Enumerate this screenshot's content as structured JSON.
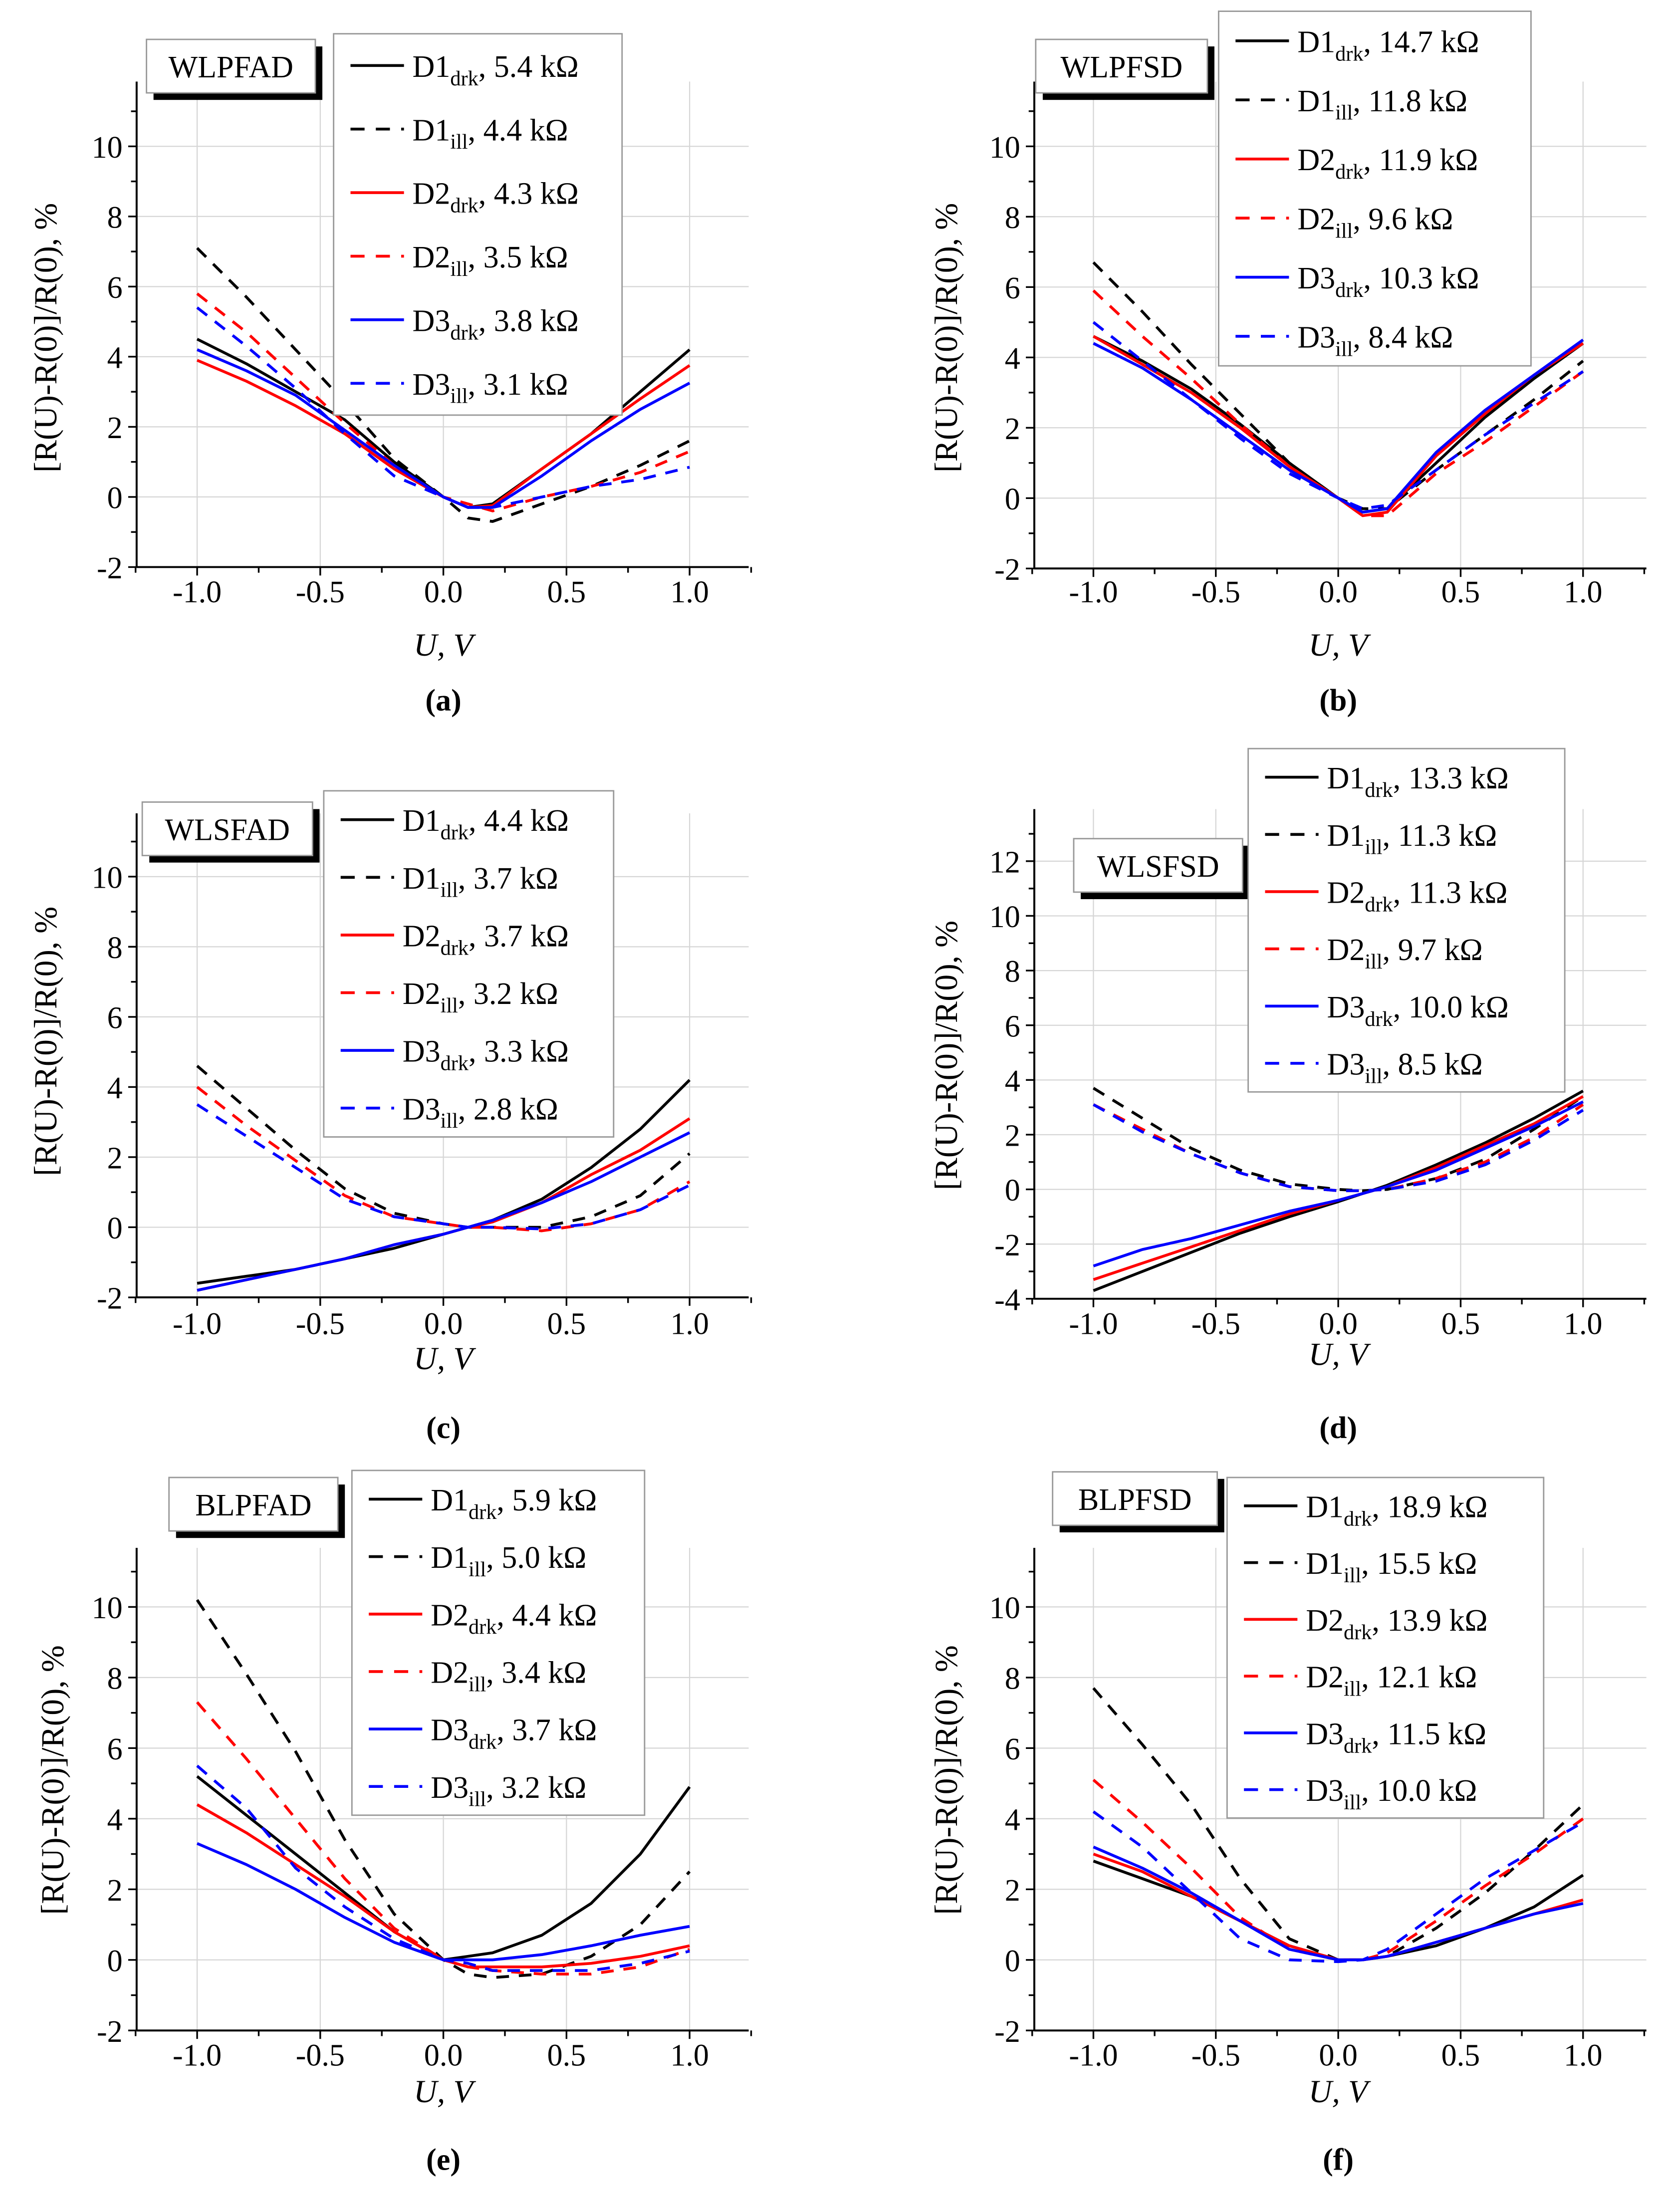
{
  "colors": {
    "D1": "#000000",
    "D2": "#ff0000",
    "D3": "#0000ff"
  },
  "chart_data": [
    {
      "type": "line",
      "panel_label": "(a)",
      "title": "WLPFAD",
      "xlabel": "U, V",
      "ylabel": "[R(U)-R(0)]/R(0), %",
      "xlim": [
        -1.25,
        1.25
      ],
      "ylim": [
        -2,
        12
      ],
      "xticks": [
        "-1.0",
        "-0.5",
        "0.0",
        "0.5",
        "1.0"
      ],
      "yticks": [
        "-2",
        "0",
        "2",
        "4",
        "6",
        "8",
        "10"
      ],
      "x": [
        -1,
        -0.8,
        -0.6,
        -0.4,
        -0.2,
        0,
        0.1,
        0.2,
        0.4,
        0.6,
        0.8,
        1
      ],
      "series": [
        {
          "name": "D1",
          "sub": "drk",
          "value": "5.4 kΩ",
          "dashed": false,
          "values": [
            4.5,
            3.8,
            3.0,
            2.2,
            1.0,
            0,
            -0.3,
            -0.2,
            0.8,
            1.8,
            3.0,
            4.2
          ]
        },
        {
          "name": "D1",
          "sub": "ill",
          "value": "4.4 kΩ",
          "dashed": true,
          "values": [
            7.1,
            5.7,
            4.2,
            2.7,
            1.1,
            0,
            -0.6,
            -0.7,
            -0.2,
            0.3,
            0.9,
            1.6
          ]
        },
        {
          "name": "D2",
          "sub": "drk",
          "value": "4.3 kΩ",
          "dashed": false,
          "values": [
            3.9,
            3.3,
            2.6,
            1.8,
            0.8,
            0,
            -0.3,
            -0.25,
            0.8,
            1.8,
            2.8,
            3.75
          ]
        },
        {
          "name": "D2",
          "sub": "ill",
          "value": "3.5 kΩ",
          "dashed": true,
          "values": [
            5.8,
            4.7,
            3.4,
            2.1,
            0.9,
            0,
            -0.2,
            -0.4,
            0,
            0.3,
            0.7,
            1.3
          ]
        },
        {
          "name": "D3",
          "sub": "drk",
          "value": "3.8 kΩ",
          "dashed": false,
          "values": [
            4.2,
            3.6,
            2.9,
            1.9,
            0.9,
            0,
            -0.3,
            -0.3,
            0.6,
            1.6,
            2.5,
            3.25
          ]
        },
        {
          "name": "D3",
          "sub": "ill",
          "value": "3.1 kΩ",
          "dashed": true,
          "values": [
            5.4,
            4.3,
            3.1,
            1.8,
            0.6,
            0,
            -0.3,
            -0.3,
            0,
            0.3,
            0.5,
            0.85
          ]
        }
      ]
    },
    {
      "type": "line",
      "panel_label": "(b)",
      "title": "WLPFSD",
      "xlabel": "U, V",
      "ylabel": "[R(U)-R(0)]/R(0), %",
      "xlim": [
        -1.25,
        1.25
      ],
      "ylim": [
        -2,
        12
      ],
      "xticks": [
        "-1.0",
        "-0.5",
        "0.0",
        "0.5",
        "1.0"
      ],
      "yticks": [
        "-2",
        "0",
        "2",
        "4",
        "6",
        "8",
        "10"
      ],
      "x": [
        -1,
        -0.8,
        -0.6,
        -0.4,
        -0.2,
        0,
        0.1,
        0.2,
        0.4,
        0.6,
        0.8,
        1
      ],
      "series": [
        {
          "name": "D1",
          "sub": "drk",
          "value": "14.7 kΩ",
          "dashed": false,
          "values": [
            4.6,
            3.9,
            3.1,
            2.1,
            1.0,
            0,
            -0.4,
            -0.3,
            1.0,
            2.3,
            3.4,
            4.4
          ]
        },
        {
          "name": "D1",
          "sub": "ill",
          "value": "11.8 kΩ",
          "dashed": true,
          "values": [
            6.7,
            5.3,
            3.8,
            2.4,
            1.0,
            0,
            -0.3,
            -0.3,
            0.8,
            1.8,
            2.8,
            3.9
          ]
        },
        {
          "name": "D2",
          "sub": "drk",
          "value": "11.9 kΩ",
          "dashed": false,
          "values": [
            4.6,
            3.8,
            3.0,
            2.0,
            0.9,
            0,
            -0.5,
            -0.4,
            1.2,
            2.4,
            3.5,
            4.4
          ]
        },
        {
          "name": "D2",
          "sub": "ill",
          "value": "9.6 kΩ",
          "dashed": true,
          "values": [
            5.9,
            4.6,
            3.4,
            2.1,
            0.9,
            0,
            -0.5,
            -0.5,
            0.7,
            1.6,
            2.6,
            3.6
          ]
        },
        {
          "name": "D3",
          "sub": "drk",
          "value": "10.3 kΩ",
          "dashed": false,
          "values": [
            4.4,
            3.7,
            2.8,
            1.8,
            0.8,
            0,
            -0.4,
            -0.3,
            1.3,
            2.5,
            3.5,
            4.5
          ]
        },
        {
          "name": "D3",
          "sub": "ill",
          "value": "8.4 kΩ",
          "dashed": true,
          "values": [
            5.0,
            3.9,
            2.8,
            1.7,
            0.7,
            0,
            -0.3,
            -0.2,
            0.8,
            1.8,
            2.7,
            3.6
          ]
        }
      ]
    },
    {
      "type": "line",
      "panel_label": "(c)",
      "title": "WLSFAD",
      "xlabel": "U, V",
      "ylabel": "[R(U)-R(0)]/R(0), %",
      "xlim": [
        -1.25,
        1.25
      ],
      "ylim": [
        -2,
        12
      ],
      "xticks": [
        "-1.0",
        "-0.5",
        "0.0",
        "0.5",
        "1.0"
      ],
      "yticks": [
        "-2",
        "0",
        "2",
        "4",
        "6",
        "8",
        "10"
      ],
      "x": [
        -1,
        -0.8,
        -0.6,
        -0.4,
        -0.2,
        0,
        0.1,
        0.2,
        0.4,
        0.6,
        0.8,
        1
      ],
      "series": [
        {
          "name": "D1",
          "sub": "drk",
          "value": "4.4 kΩ",
          "dashed": false,
          "values": [
            -1.6,
            -1.4,
            -1.2,
            -0.9,
            -0.6,
            -0.2,
            0.0,
            0.2,
            0.8,
            1.7,
            2.8,
            4.2
          ]
        },
        {
          "name": "D1",
          "sub": "ill",
          "value": "3.7 kΩ",
          "dashed": true,
          "values": [
            4.6,
            3.4,
            2.2,
            1.1,
            0.4,
            0.1,
            0.0,
            0.0,
            0.0,
            0.3,
            0.9,
            2.1
          ]
        },
        {
          "name": "D2",
          "sub": "drk",
          "value": "3.7 kΩ",
          "dashed": false,
          "values": [
            -1.8,
            -1.5,
            -1.2,
            -0.9,
            -0.5,
            -0.2,
            0.0,
            0.15,
            0.7,
            1.5,
            2.2,
            3.1
          ]
        },
        {
          "name": "D2",
          "sub": "ill",
          "value": "3.2 kΩ",
          "dashed": true,
          "values": [
            4.0,
            2.9,
            1.9,
            0.9,
            0.3,
            0.1,
            0.0,
            0.0,
            -0.1,
            0.1,
            0.5,
            1.3
          ]
        },
        {
          "name": "D3",
          "sub": "drk",
          "value": "3.3 kΩ",
          "dashed": false,
          "values": [
            -1.8,
            -1.5,
            -1.2,
            -0.9,
            -0.5,
            -0.2,
            0.0,
            0.2,
            0.7,
            1.3,
            2.0,
            2.7
          ]
        },
        {
          "name": "D3",
          "sub": "ill",
          "value": "2.8 kΩ",
          "dashed": true,
          "values": [
            3.5,
            2.6,
            1.7,
            0.8,
            0.3,
            0.1,
            0.0,
            0.0,
            -0.05,
            0.1,
            0.5,
            1.2
          ]
        }
      ]
    },
    {
      "type": "line",
      "panel_label": "(d)",
      "title": "WLSFSD",
      "xlabel": "U, V",
      "ylabel": "[R(U)-R(0)]/R(0), %",
      "xlim": [
        -1.25,
        1.25
      ],
      "ylim": [
        -4,
        14
      ],
      "xticks": [
        "-1.0",
        "-0.5",
        "0.0",
        "0.5",
        "1.0"
      ],
      "yticks": [
        "-4",
        "-2",
        "0",
        "2",
        "4",
        "6",
        "8",
        "10",
        "12"
      ],
      "x": [
        -1,
        -0.8,
        -0.6,
        -0.4,
        -0.2,
        0,
        0.1,
        0.2,
        0.4,
        0.6,
        0.8,
        1
      ],
      "series": [
        {
          "name": "D1",
          "sub": "drk",
          "value": "13.3 kΩ",
          "dashed": false,
          "values": [
            -3.7,
            -3.0,
            -2.3,
            -1.6,
            -1.0,
            -0.45,
            -0.15,
            0.15,
            0.9,
            1.7,
            2.6,
            3.6
          ]
        },
        {
          "name": "D1",
          "sub": "ill",
          "value": "11.3 kΩ",
          "dashed": true,
          "values": [
            3.7,
            2.6,
            1.5,
            0.7,
            0.2,
            0,
            -0.05,
            0,
            0.4,
            1.1,
            2.2,
            3.4
          ]
        },
        {
          "name": "D2",
          "sub": "drk",
          "value": "11.3 kΩ",
          "dashed": false,
          "values": [
            -3.3,
            -2.7,
            -2.1,
            -1.5,
            -0.9,
            -0.4,
            -0.15,
            0.1,
            0.8,
            1.6,
            2.4,
            3.4
          ]
        },
        {
          "name": "D2",
          "sub": "ill",
          "value": "9.7 kΩ",
          "dashed": true,
          "values": [
            3.1,
            2.2,
            1.3,
            0.6,
            0.1,
            -0.05,
            -0.05,
            0,
            0.4,
            1.0,
            1.9,
            3.1
          ]
        },
        {
          "name": "D3",
          "sub": "drk",
          "value": "10.0 kΩ",
          "dashed": false,
          "values": [
            -2.8,
            -2.2,
            -1.8,
            -1.3,
            -0.8,
            -0.4,
            -0.15,
            0.1,
            0.7,
            1.5,
            2.3,
            3.2
          ]
        },
        {
          "name": "D3",
          "sub": "ill",
          "value": "8.5 kΩ",
          "dashed": true,
          "values": [
            3.1,
            2.1,
            1.3,
            0.6,
            0.1,
            -0.05,
            -0.05,
            0,
            0.3,
            0.9,
            1.8,
            2.9
          ]
        }
      ]
    },
    {
      "type": "line",
      "panel_label": "(e)",
      "title": "BLPFAD",
      "xlabel": "U, V",
      "ylabel": "[R(U)-R(0)]/R(0), %",
      "xlim": [
        -1.25,
        1.25
      ],
      "ylim": [
        -2,
        12
      ],
      "xticks": [
        "-1.0",
        "-0.5",
        "0.0",
        "0.5",
        "1.0"
      ],
      "yticks": [
        "-2",
        "0",
        "2",
        "4",
        "6",
        "8",
        "10"
      ],
      "x": [
        -1,
        -0.8,
        -0.6,
        -0.4,
        -0.2,
        0,
        0.1,
        0.2,
        0.4,
        0.6,
        0.8,
        1
      ],
      "series": [
        {
          "name": "D1",
          "sub": "drk",
          "value": "5.9 kΩ",
          "dashed": false,
          "values": [
            5.2,
            4.1,
            3.0,
            1.9,
            0.8,
            0,
            0.1,
            0.2,
            0.7,
            1.6,
            3.0,
            4.9
          ]
        },
        {
          "name": "D1",
          "sub": "ill",
          "value": "5.0 kΩ",
          "dashed": true,
          "values": [
            10.2,
            8.1,
            5.9,
            3.4,
            1.3,
            0,
            -0.4,
            -0.5,
            -0.4,
            0.1,
            1.0,
            2.5
          ]
        },
        {
          "name": "D2",
          "sub": "drk",
          "value": "4.4 kΩ",
          "dashed": false,
          "values": [
            4.4,
            3.6,
            2.7,
            1.8,
            0.8,
            0,
            -0.2,
            -0.2,
            -0.2,
            -0.1,
            0.1,
            0.4
          ]
        },
        {
          "name": "D2",
          "sub": "ill",
          "value": "3.4 kΩ",
          "dashed": true,
          "values": [
            7.3,
            5.7,
            4.0,
            2.3,
            0.9,
            0,
            -0.2,
            -0.3,
            -0.4,
            -0.4,
            -0.2,
            0.3
          ]
        },
        {
          "name": "D3",
          "sub": "drk",
          "value": "3.7 kΩ",
          "dashed": false,
          "values": [
            3.3,
            2.7,
            2.0,
            1.2,
            0.5,
            0,
            0,
            0,
            0.15,
            0.4,
            0.7,
            0.95
          ]
        },
        {
          "name": "D3",
          "sub": "ill",
          "value": "3.2 kΩ",
          "dashed": true,
          "values": [
            5.5,
            4.3,
            2.6,
            1.5,
            0.6,
            0,
            -0.1,
            -0.3,
            -0.3,
            -0.3,
            -0.1,
            0.25
          ]
        }
      ]
    },
    {
      "type": "line",
      "panel_label": "(f)",
      "title": "BLPFSD",
      "xlabel": "U, V",
      "ylabel": "[R(U)-R(0)]/R(0), %",
      "xlim": [
        -1.25,
        1.25
      ],
      "ylim": [
        -2,
        12
      ],
      "xticks": [
        "-1.0",
        "-0.5",
        "0.0",
        "0.5",
        "1.0"
      ],
      "yticks": [
        "-2",
        "0",
        "2",
        "4",
        "6",
        "8",
        "10"
      ],
      "x": [
        -1,
        -0.8,
        -0.6,
        -0.4,
        -0.2,
        0,
        0.1,
        0.2,
        0.4,
        0.6,
        0.8,
        1
      ],
      "series": [
        {
          "name": "D1",
          "sub": "drk",
          "value": "18.9 kΩ",
          "dashed": false,
          "values": [
            2.8,
            2.3,
            1.8,
            1.1,
            0.4,
            0,
            0,
            0.1,
            0.4,
            0.9,
            1.5,
            2.4
          ]
        },
        {
          "name": "D1",
          "sub": "ill",
          "value": "15.5 kΩ",
          "dashed": true,
          "values": [
            7.7,
            6.1,
            4.4,
            2.3,
            0.6,
            0,
            0,
            0.1,
            0.9,
            1.9,
            3.1,
            4.4
          ]
        },
        {
          "name": "D2",
          "sub": "drk",
          "value": "13.9 kΩ",
          "dashed": false,
          "values": [
            3.0,
            2.5,
            1.8,
            1.1,
            0.4,
            0,
            0,
            0.1,
            0.5,
            0.9,
            1.3,
            1.7
          ]
        },
        {
          "name": "D2",
          "sub": "ill",
          "value": "12.1 kΩ",
          "dashed": true,
          "values": [
            5.1,
            3.9,
            2.6,
            1.2,
            0.3,
            0,
            0,
            0.2,
            1.1,
            2.1,
            3.0,
            4.0
          ]
        },
        {
          "name": "D3",
          "sub": "drk",
          "value": "11.5 kΩ",
          "dashed": false,
          "values": [
            3.2,
            2.6,
            1.9,
            1.1,
            0.3,
            0,
            0,
            0.1,
            0.5,
            0.9,
            1.3,
            1.6
          ]
        },
        {
          "name": "D3",
          "sub": "ill",
          "value": "10.0 kΩ",
          "dashed": true,
          "values": [
            4.2,
            3.2,
            1.9,
            0.6,
            0.0,
            -0.05,
            0,
            0.3,
            1.3,
            2.3,
            3.1,
            3.9
          ]
        }
      ]
    }
  ]
}
